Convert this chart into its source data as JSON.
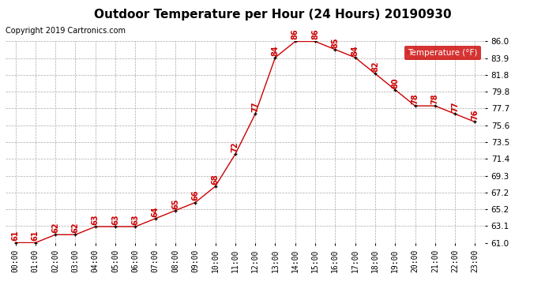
{
  "title": "Outdoor Temperature per Hour (24 Hours) 20190930",
  "copyright": "Copyright 2019 Cartronics.com",
  "legend_label": "Temperature (°F)",
  "hours": [
    "00:00",
    "01:00",
    "02:00",
    "03:00",
    "04:00",
    "05:00",
    "06:00",
    "07:00",
    "08:00",
    "09:00",
    "10:00",
    "11:00",
    "12:00",
    "13:00",
    "14:00",
    "15:00",
    "16:00",
    "17:00",
    "18:00",
    "19:00",
    "20:00",
    "21:00",
    "22:00",
    "23:00"
  ],
  "temperatures": [
    61,
    61,
    62,
    62,
    63,
    63,
    63,
    64,
    65,
    66,
    68,
    72,
    77,
    84,
    86,
    86,
    85,
    84,
    82,
    80,
    78,
    78,
    77,
    76
  ],
  "ylim": [
    61.0,
    86.0
  ],
  "yticks": [
    61.0,
    63.1,
    65.2,
    67.2,
    69.3,
    71.4,
    73.5,
    75.6,
    77.7,
    79.8,
    81.8,
    83.9,
    86.0
  ],
  "line_color": "#cc0000",
  "marker_color": "#000000",
  "label_color": "#cc0000",
  "background_color": "#ffffff",
  "grid_color": "#aaaaaa",
  "title_fontsize": 11,
  "copyright_fontsize": 7,
  "label_fontsize": 7,
  "legend_bg": "#cc0000",
  "legend_text_color": "#ffffff"
}
